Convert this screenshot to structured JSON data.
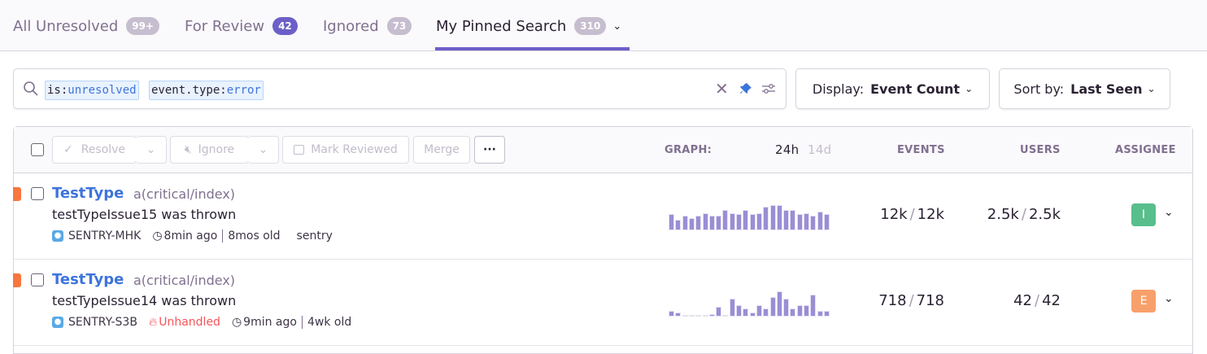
{
  "tabs": [
    {
      "label": "All Unresolved",
      "count": "99+",
      "active": false
    },
    {
      "label": "For Review",
      "count": "42",
      "active": false
    },
    {
      "label": "Ignored",
      "count": "73",
      "active": false
    },
    {
      "label": "My Pinned Search",
      "count": "310",
      "active": true
    }
  ],
  "search": {
    "tokens": [
      {
        "key": "is:",
        "value": "unresolved"
      },
      {
        "key": "event.type:",
        "value": "error"
      }
    ]
  },
  "display": {
    "label": "Display:",
    "value": "Event Count"
  },
  "sort": {
    "label": "Sort by:",
    "value": "Last Seen"
  },
  "actions": {
    "resolve": "Resolve",
    "ignore": "Ignore",
    "mark_reviewed": "Mark Reviewed",
    "merge": "Merge",
    "more": "···"
  },
  "columns": {
    "graph": "GRAPH:",
    "period_24h": "24h",
    "period_14d": "14d",
    "events": "EVENTS",
    "users": "USERS",
    "assignee": "ASSIGNEE"
  },
  "colors": {
    "accent": "#6c5fc7",
    "link": "#3d74db",
    "level_error": "#f9763e",
    "unhandled": "#f55459"
  },
  "issues": [
    {
      "title": "TestType",
      "culprit": "a(critical/index)",
      "message": "testTypeIssue15 was thrown",
      "short_id": "SENTRY-MHK",
      "unhandled": null,
      "last_seen": "8min ago",
      "age": "8mos old",
      "extra": "sentry",
      "events": "12k",
      "events_total": "12k",
      "users": "2.5k",
      "users_total": "2.5k",
      "assignee": "I",
      "assignee_color": "#57be8c",
      "graph": [
        57,
        37,
        53,
        43,
        51,
        60,
        52,
        53,
        74,
        60,
        58,
        74,
        58,
        62,
        84,
        90,
        90,
        74,
        72,
        57,
        62,
        52,
        68,
        57
      ]
    },
    {
      "title": "TestType",
      "culprit": "a(critical/index)",
      "message": "testTypeIssue14 was thrown",
      "short_id": "SENTRY-S3B",
      "unhandled": "Unhandled",
      "last_seen": "9min ago",
      "age": "4wk old",
      "extra": "",
      "events": "718",
      "events_total": "718",
      "users": "42",
      "users_total": "42",
      "assignee": "E",
      "assignee_color": "#f8a06b",
      "graph": [
        20,
        14,
        0,
        0,
        0,
        0,
        7,
        35,
        0,
        63,
        42,
        28,
        14,
        42,
        28,
        70,
        91,
        63,
        28,
        42,
        42,
        77,
        21,
        21
      ]
    }
  ]
}
